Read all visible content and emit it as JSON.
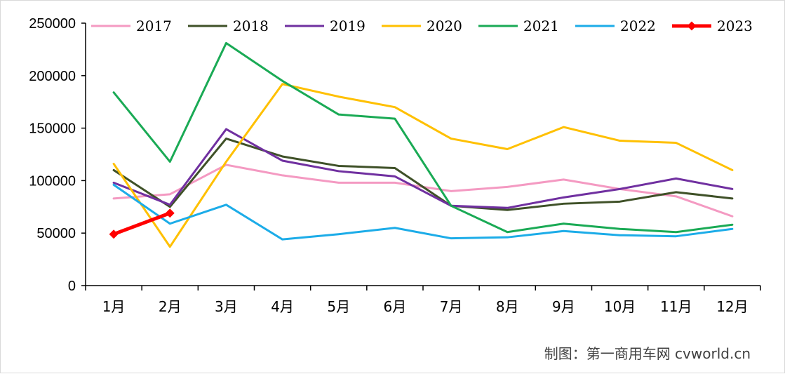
{
  "chart_data": {
    "type": "line",
    "categories": [
      "1月",
      "2月",
      "3月",
      "4月",
      "5月",
      "6月",
      "7月",
      "8月",
      "9月",
      "10月",
      "11月",
      "12月"
    ],
    "ylim": [
      0,
      250000
    ],
    "yticks": [
      0,
      50000,
      100000,
      150000,
      200000,
      250000
    ],
    "ytick_labels": [
      "0",
      "50000",
      "100000",
      "150000",
      "200000",
      "250000"
    ],
    "grid": false,
    "legend_position": "top",
    "series": [
      {
        "name": "2017",
        "color": "#f49ac2",
        "width": 3,
        "marker": "none",
        "values": [
          83000,
          87000,
          115000,
          105000,
          98000,
          98000,
          90000,
          94000,
          101000,
          92000,
          85000,
          66000
        ]
      },
      {
        "name": "2018",
        "color": "#3f5128",
        "width": 3,
        "marker": "none",
        "values": [
          110000,
          75000,
          140000,
          123000,
          114000,
          112000,
          76000,
          72000,
          78000,
          80000,
          89000,
          83000
        ]
      },
      {
        "name": "2019",
        "color": "#7030a0",
        "width": 3,
        "marker": "none",
        "values": [
          98000,
          77000,
          149000,
          119000,
          109000,
          104000,
          76000,
          74000,
          84000,
          92000,
          102000,
          92000
        ]
      },
      {
        "name": "2020",
        "color": "#ffc000",
        "width": 3,
        "marker": "none",
        "values": [
          116000,
          37000,
          118000,
          192000,
          180000,
          170000,
          140000,
          130000,
          151000,
          138000,
          136000,
          110000
        ]
      },
      {
        "name": "2021",
        "color": "#1aaa55",
        "width": 3,
        "marker": "none",
        "values": [
          184000,
          118000,
          231000,
          195000,
          163000,
          159000,
          76000,
          51000,
          59000,
          54000,
          51000,
          58000
        ]
      },
      {
        "name": "2022",
        "color": "#1cace8",
        "width": 3,
        "marker": "none",
        "values": [
          96000,
          59000,
          77000,
          44000,
          49000,
          55000,
          45000,
          46000,
          52000,
          48000,
          47000,
          54000
        ]
      },
      {
        "name": "2023",
        "color": "#ff0000",
        "width": 5,
        "marker": "diamond",
        "values": [
          49000,
          69000,
          null,
          null,
          null,
          null,
          null,
          null,
          null,
          null,
          null,
          null
        ]
      }
    ]
  },
  "credit": "制图：第一商用车网 cvworld.cn"
}
